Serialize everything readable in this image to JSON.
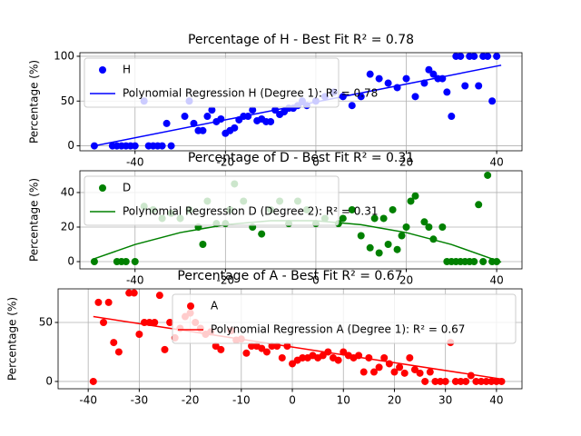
{
  "chart_data": [
    {
      "type": "scatter",
      "title": "Percentage of H - Best Fit R² = 0.78",
      "ylabel": "Percentage (%)",
      "grid": true,
      "legend": "upper left",
      "xlim": [
        -52.2,
        45.6
      ],
      "ylim": [
        -5.5,
        104
      ],
      "xticks": [
        -40,
        -20,
        0,
        20,
        40
      ],
      "yticks": [
        0,
        50,
        100
      ],
      "series": [
        {
          "name": "H",
          "type": "scatter",
          "color": "#0000ff",
          "x": [
            -49,
            -45,
            -44,
            -43,
            -42,
            -41,
            -40,
            -38,
            -37,
            -36,
            -35,
            -34,
            -33,
            -32,
            -29,
            -28,
            -27,
            -26,
            -25,
            -24,
            -23,
            -22,
            -21,
            -20,
            -19,
            -18,
            -17,
            -16,
            -15,
            -14,
            -13,
            -12,
            -11,
            -10,
            -9,
            -8,
            -7,
            -6,
            -5,
            -4,
            -3,
            -2,
            0,
            2,
            4,
            6,
            8,
            10,
            12,
            14,
            16,
            18,
            20,
            22,
            24,
            25,
            26,
            27,
            28,
            29,
            30,
            31,
            32,
            33,
            34,
            35,
            36,
            37,
            38,
            39,
            40
          ],
          "values": [
            0,
            0,
            0,
            0,
            0,
            0,
            0,
            50,
            0,
            0,
            0,
            0,
            25,
            0,
            33,
            50,
            25,
            17,
            17,
            33,
            40,
            27,
            30,
            14,
            17,
            20,
            29,
            33,
            33,
            40,
            28,
            30,
            27,
            27,
            40,
            35,
            38,
            42,
            42,
            45,
            50,
            45,
            50,
            55,
            60,
            55,
            45,
            55,
            80,
            75,
            70,
            65,
            75,
            55,
            70,
            85,
            80,
            75,
            75,
            60,
            33,
            100,
            100,
            67,
            100,
            100,
            67,
            100,
            100,
            50,
            100
          ]
        },
        {
          "name": "Polynomial Regression H (Degree 1): R² = 0.78",
          "type": "line",
          "color": "#0000ff",
          "x": [
            -49,
            41
          ],
          "values": [
            0,
            90
          ]
        }
      ]
    },
    {
      "type": "scatter",
      "title": "Percentage of D - Best Fit R² = 0.31",
      "ylabel": "Percentage (%)",
      "grid": true,
      "legend": "upper left",
      "xlim": [
        -52.2,
        45.6
      ],
      "ylim": [
        -4.2,
        52.6
      ],
      "xticks": [
        -40,
        -20,
        0,
        20,
        40
      ],
      "yticks": [
        0,
        20,
        40
      ],
      "series": [
        {
          "name": "D",
          "type": "scatter",
          "color": "#008000",
          "x": [
            -49,
            -44,
            -43,
            -42,
            -40,
            -38,
            -36,
            -34,
            -32,
            -30,
            -28,
            -26,
            -25,
            -24,
            -22,
            -20,
            -19,
            -18,
            -16,
            -14,
            -12,
            -10,
            -8,
            -6,
            -4,
            -2,
            0,
            2,
            5,
            6,
            8,
            10,
            12,
            13,
            14,
            15,
            16,
            17,
            18,
            19,
            20,
            21,
            22,
            24,
            25,
            26,
            28,
            29,
            30,
            31,
            32,
            33,
            34,
            35,
            36,
            37,
            38,
            39,
            40
          ],
          "values": [
            0,
            0,
            0,
            0,
            0,
            32,
            30,
            25,
            28,
            25,
            30,
            20,
            10,
            35,
            22,
            22,
            30,
            45,
            35,
            20,
            16,
            30,
            35,
            22,
            35,
            30,
            22,
            25,
            22,
            25,
            30,
            15,
            8,
            25,
            5,
            25,
            10,
            30,
            7,
            15,
            20,
            35,
            38,
            23,
            20,
            13,
            20,
            0,
            0,
            0,
            0,
            0,
            0,
            0,
            33,
            0,
            50,
            0,
            0
          ]
        },
        {
          "name": "Polynomial Regression D (Degree 2): R² = 0.31",
          "type": "line",
          "color": "#008000",
          "x": [
            -49,
            -40,
            -30,
            -20,
            -10,
            0,
            10,
            20,
            30,
            41
          ],
          "values": [
            1.7,
            9.9,
            16.8,
            21.4,
            23.7,
            23.7,
            21.4,
            16.8,
            9.9,
            -0.3
          ]
        }
      ]
    },
    {
      "type": "scatter",
      "title": "Percentage of A - Best Fit R² = 0.67",
      "ylabel": "Percentage (%)",
      "grid": true,
      "legend": "upper right",
      "xlim": [
        -45.9,
        45
      ],
      "ylim": [
        -6.2,
        78.5
      ],
      "xticks": [
        -40,
        -30,
        -20,
        -10,
        0,
        10,
        20,
        30,
        40
      ],
      "yticks": [
        0,
        50
      ],
      "series": [
        {
          "name": "A",
          "type": "scatter",
          "color": "#ff0000",
          "x": [
            -39,
            -38,
            -37,
            -36,
            -35,
            -34,
            -32,
            -31,
            -30,
            -29,
            -28,
            -27,
            -26,
            -25,
            -24,
            -23,
            -22,
            -21,
            -20,
            -19,
            -18,
            -17,
            -16,
            -15,
            -14,
            -12,
            -11,
            -10,
            -9,
            -8,
            -7,
            -6,
            -5,
            -4,
            -3,
            -2,
            -1,
            0,
            1,
            2,
            3,
            4,
            5,
            6,
            7,
            8,
            9,
            10,
            11,
            12,
            13,
            14,
            15,
            16,
            17,
            18,
            19,
            20,
            21,
            22,
            23,
            24,
            25,
            26,
            27,
            28,
            29,
            30,
            31,
            32,
            33,
            34,
            35,
            36,
            37,
            38,
            39,
            40,
            41
          ],
          "values": [
            0,
            67,
            50,
            67,
            33,
            25,
            75,
            75,
            40,
            50,
            50,
            50,
            73,
            27,
            50,
            37,
            45,
            55,
            58,
            50,
            45,
            40,
            42,
            30,
            27,
            43,
            35,
            36,
            24,
            30,
            30,
            28,
            25,
            30,
            30,
            20,
            30,
            15,
            18,
            20,
            20,
            22,
            20,
            22,
            25,
            20,
            18,
            25,
            22,
            20,
            22,
            8,
            20,
            8,
            12,
            20,
            15,
            8,
            12,
            7,
            20,
            10,
            7,
            0,
            8,
            0,
            0,
            0,
            33,
            0,
            0,
            0,
            5,
            0,
            0,
            0,
            0,
            0,
            0
          ]
        },
        {
          "name": "Polynomial Regression A (Degree 1): R² = 0.67",
          "type": "line",
          "color": "#ff0000",
          "x": [
            -39,
            41
          ],
          "values": [
            55,
            2
          ]
        }
      ]
    }
  ]
}
